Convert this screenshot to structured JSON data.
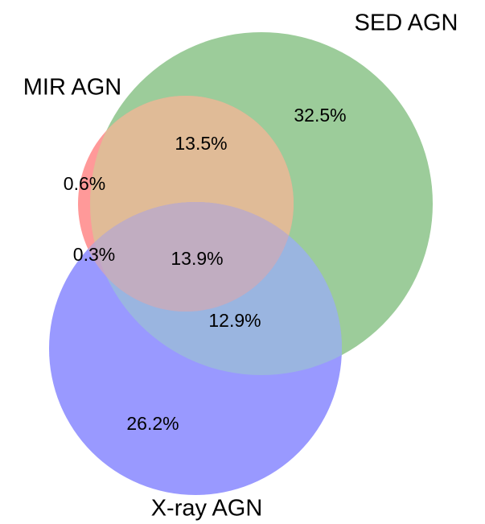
{
  "chart_data": {
    "type": "venn",
    "sets": [
      "SED AGN",
      "MIR AGN",
      "X-ray AGN"
    ],
    "set_colors": [
      "#9ccc9a",
      "#ff9999",
      "#9999ff"
    ],
    "values": [
      32.5,
      13.5,
      0.6,
      0.3,
      13.9,
      12.9,
      26.2
    ],
    "value_labels": [
      "32.5%",
      "13.5%",
      "0.6%",
      "0.3%",
      "13.9%",
      "12.9%",
      "26.2%"
    ],
    "colors": [
      "#9ccc9a",
      "#e0bb97",
      "#ff9999",
      "#c4a3c8",
      "#c1adc1",
      "#9ab5e0",
      "#9999ff"
    ]
  }
}
